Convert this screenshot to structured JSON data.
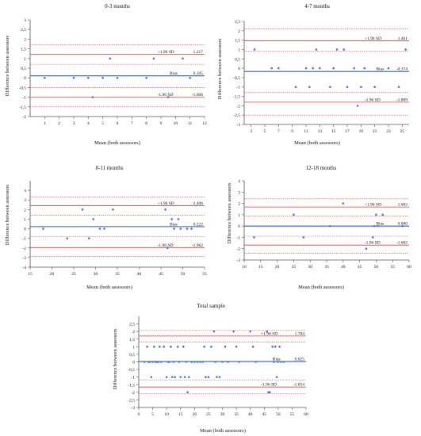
{
  "chart_data": [
    {
      "type": "scatter",
      "title": "0-3 months",
      "xlabel": "Mean (both assessors)",
      "ylabel": "Difference between assessors",
      "xlim": [
        0,
        12
      ],
      "ylim": [
        -2,
        3
      ],
      "xticks": [
        1,
        2,
        3,
        4,
        5,
        6,
        7,
        8,
        9,
        10,
        11,
        12
      ],
      "xtick_labels": [
        "1",
        "2",
        "3",
        "4",
        "5",
        "6",
        "7",
        "8",
        "9",
        "10",
        "11",
        "12"
      ],
      "yticks": [
        -2,
        -1.5,
        -1,
        -0.5,
        0,
        0.5,
        1,
        1.5,
        2,
        2.5,
        3
      ],
      "ytick_labels": [
        "-2",
        "-1,5",
        "-1",
        "-0,5",
        "0",
        "0,5",
        "1",
        "1,5",
        "2",
        "2,5",
        "3"
      ],
      "bias": 0.105,
      "upper_loa": 1.217,
      "lower_loa": -1.006,
      "ref_lines": [
        -1.5,
        -0.5,
        0.7,
        1.7
      ],
      "bias_label": "Bias",
      "bias_value_label": "0.105",
      "upper_label": "+1.96 SD",
      "upper_value_label": "1.217",
      "lower_label": "-1.96 SD",
      "lower_value_label": "-1.006",
      "points": [
        [
          1,
          0
        ],
        [
          3,
          0
        ],
        [
          4,
          0
        ],
        [
          4.3,
          -1
        ],
        [
          5,
          0
        ],
        [
          5.5,
          1
        ],
        [
          6,
          0
        ],
        [
          8,
          0
        ],
        [
          8.5,
          1
        ],
        [
          9.5,
          -1
        ],
        [
          10.5,
          1
        ],
        [
          11,
          0
        ]
      ]
    },
    {
      "type": "scatter",
      "title": "4-7 months",
      "xlabel": "Mean (both assessors)",
      "ylabel": "Difference between assessors",
      "xlim": [
        2,
        26
      ],
      "ylim": [
        -3,
        2.5
      ],
      "xticks": [
        3,
        5,
        7,
        9,
        11,
        13,
        15,
        17,
        19,
        21,
        23,
        25
      ],
      "xtick_labels": [
        "3",
        "5",
        "7",
        "9",
        "11",
        "13",
        "15",
        "17",
        "19",
        "21",
        "23",
        "25"
      ],
      "yticks": [
        -3,
        -2.5,
        -2,
        -1.5,
        -1,
        -0.5,
        0,
        0.5,
        1,
        1.5,
        2,
        2.5
      ],
      "ytick_labels": [
        "-3",
        "-2,5",
        "-2",
        "-1,5",
        "-1",
        "-0,5",
        "0",
        "0,5",
        "1",
        "1,5",
        "2",
        "2,5"
      ],
      "bias": -0.174,
      "upper_loa": 1.461,
      "lower_loa": -1.809,
      "ref_lines": [
        -2.5,
        -1.3,
        0.9,
        2.1
      ],
      "bias_label": "Bias",
      "bias_value_label": "-0.174",
      "upper_label": "+1.96 SD",
      "upper_value_label": "1.461",
      "lower_label": "-1.96 SD",
      "lower_value_label": "-1.809",
      "points": [
        [
          3.5,
          1
        ],
        [
          6,
          0
        ],
        [
          7,
          0
        ],
        [
          9.5,
          -1
        ],
        [
          11,
          0
        ],
        [
          11.5,
          -1
        ],
        [
          12,
          0
        ],
        [
          12.5,
          1
        ],
        [
          13,
          0
        ],
        [
          14.5,
          -1
        ],
        [
          15,
          0
        ],
        [
          15.5,
          1
        ],
        [
          16.5,
          1
        ],
        [
          17,
          -1
        ],
        [
          18,
          0
        ],
        [
          18.5,
          -2
        ],
        [
          19,
          -1
        ],
        [
          19.5,
          0
        ],
        [
          21,
          -1
        ],
        [
          23,
          0
        ],
        [
          24.5,
          -1
        ],
        [
          25.5,
          1
        ]
      ]
    },
    {
      "type": "scatter",
      "title": "8-11 months",
      "xlabel": "Mean (both assessors)",
      "ylabel": "Difference between assessors",
      "xlim": [
        15,
        55
      ],
      "ylim": [
        -4,
        5
      ],
      "xticks": [
        15,
        20,
        25,
        30,
        35,
        40,
        45,
        50,
        55
      ],
      "xtick_labels": [
        "15",
        "20",
        "25",
        "30",
        "35",
        "40",
        "45",
        "50",
        "55"
      ],
      "yticks": [
        -4,
        -3,
        -2,
        -1,
        0,
        1,
        2,
        3,
        4
      ],
      "ytick_labels": [
        "-4",
        "-3",
        "-2",
        "-1",
        "0",
        "1",
        "2",
        "3",
        "4"
      ],
      "bias": 0.222,
      "upper_loa": 2.406,
      "lower_loa": -1.962,
      "ref_lines": [
        -2.9,
        -0.8,
        1.4,
        3.3
      ],
      "bias_label": "Bias",
      "bias_value_label": "0.222",
      "upper_label": "+1.96 SD",
      "upper_value_label": "2.406",
      "lower_label": "-1.96 SD",
      "lower_value_label": "-1.962",
      "points": [
        [
          18,
          0
        ],
        [
          23.5,
          -1
        ],
        [
          27,
          2
        ],
        [
          28.5,
          -1
        ],
        [
          29.5,
          1
        ],
        [
          31,
          0
        ],
        [
          32,
          0
        ],
        [
          34,
          2
        ],
        [
          46,
          2
        ],
        [
          46.5,
          -2
        ],
        [
          47.5,
          1
        ],
        [
          48,
          0
        ],
        [
          49,
          1
        ],
        [
          49.5,
          0
        ],
        [
          51,
          0
        ],
        [
          52,
          0
        ]
      ]
    },
    {
      "type": "scatter",
      "title": "12-18 months",
      "xlabel": "Mean (both assessors)",
      "ylabel": "Difference between assessors",
      "xlim": [
        10,
        60
      ],
      "ylim": [
        -3,
        4
      ],
      "xticks": [
        10,
        15,
        20,
        25,
        30,
        35,
        40,
        45,
        50,
        55,
        60
      ],
      "xtick_labels": [
        "10",
        "15",
        "20",
        "25",
        "30",
        "35",
        "40",
        "45",
        "50",
        "55",
        "60"
      ],
      "yticks": [
        -3,
        -2,
        -1,
        0,
        1,
        2,
        3,
        4
      ],
      "ytick_labels": [
        "-3",
        "-2",
        "-1",
        "0",
        "1",
        "2",
        "3",
        "4"
      ],
      "bias": 0.0,
      "upper_loa": 1.682,
      "lower_loa": -1.682,
      "ref_lines": [
        -2.4,
        -0.9,
        0.9,
        2.4
      ],
      "bias_label": "Bias",
      "bias_value_label": "0.000",
      "upper_label": "+1.96 SD",
      "upper_value_label": "1.682",
      "lower_label": "-1.96 SD",
      "lower_value_label": "-1.682",
      "points": [
        [
          13,
          -1
        ],
        [
          25,
          1
        ],
        [
          28,
          -1
        ],
        [
          36,
          0
        ],
        [
          40,
          2
        ],
        [
          47,
          -2
        ],
        [
          49,
          -1
        ],
        [
          49.5,
          0
        ],
        [
          50,
          1
        ],
        [
          50.5,
          0
        ],
        [
          52,
          1
        ],
        [
          58,
          0
        ]
      ]
    },
    {
      "type": "scatter",
      "title": "Total sample",
      "xlabel": "Mean (both assessors)",
      "ylabel": "Difference between assessors",
      "xlim": [
        0,
        60
      ],
      "ylim": [
        -3,
        3
      ],
      "xticks": [
        0,
        5,
        10,
        15,
        20,
        25,
        30,
        35,
        40,
        45,
        50,
        55,
        60
      ],
      "xtick_labels": [
        "0",
        "5",
        "10",
        "15",
        "20",
        "25",
        "30",
        "35",
        "40",
        "45",
        "50",
        "55",
        "60"
      ],
      "yticks": [
        -3,
        -2.5,
        -2,
        -1.5,
        -1,
        -0.5,
        0,
        0.5,
        1,
        1.5,
        2,
        2.5
      ],
      "ytick_labels": [
        "-3",
        "-2,5",
        "-2",
        "-1,5",
        "-1",
        "-0,5",
        "0",
        "0,5",
        "1",
        "1,5",
        "2",
        "2,5"
      ],
      "bias": 0.025,
      "upper_loa": 1.704,
      "lower_loa": -1.654,
      "ref_lines": [
        -2.1,
        -1.2,
        1.3,
        2.1
      ],
      "bias_label": "Bias",
      "bias_value_label": "0.025",
      "upper_label": "+1.96 SD",
      "upper_value_label": "1.704",
      "lower_label": "-1.96 SD",
      "lower_value_label": "-1.654",
      "points": [
        [
          2,
          0
        ],
        [
          3,
          1
        ],
        [
          3.5,
          0
        ],
        [
          4,
          0
        ],
        [
          4.5,
          -1
        ],
        [
          5,
          0
        ],
        [
          5.5,
          1
        ],
        [
          6,
          0
        ],
        [
          6.5,
          0
        ],
        [
          7,
          0
        ],
        [
          7.5,
          1
        ],
        [
          8,
          0
        ],
        [
          9,
          1
        ],
        [
          10,
          -1
        ],
        [
          10.5,
          0
        ],
        [
          11,
          0
        ],
        [
          11.5,
          1
        ],
        [
          12,
          -1
        ],
        [
          12.5,
          0
        ],
        [
          13,
          -1
        ],
        [
          14,
          1
        ],
        [
          14.5,
          0
        ],
        [
          15,
          -1
        ],
        [
          16,
          1
        ],
        [
          16.5,
          -1
        ],
        [
          17,
          0
        ],
        [
          17.5,
          -2
        ],
        [
          18,
          -1
        ],
        [
          19,
          0
        ],
        [
          20,
          0
        ],
        [
          21,
          0
        ],
        [
          22,
          0
        ],
        [
          23,
          0
        ],
        [
          23.5,
          1
        ],
        [
          24,
          -1
        ],
        [
          25,
          -1
        ],
        [
          26,
          1
        ],
        [
          27,
          2
        ],
        [
          27.5,
          0
        ],
        [
          28,
          -1
        ],
        [
          29,
          -1
        ],
        [
          30,
          0
        ],
        [
          31,
          1
        ],
        [
          32,
          0
        ],
        [
          34,
          2
        ],
        [
          35,
          1
        ],
        [
          36,
          0
        ],
        [
          40,
          2
        ],
        [
          41,
          1
        ],
        [
          42,
          0
        ],
        [
          46,
          2
        ],
        [
          46.5,
          -2
        ],
        [
          47,
          -2
        ],
        [
          48,
          1
        ],
        [
          48.5,
          0
        ],
        [
          49,
          1
        ],
        [
          49.5,
          -1
        ],
        [
          50,
          0
        ],
        [
          50.5,
          1
        ],
        [
          51,
          0
        ],
        [
          52,
          0
        ]
      ]
    }
  ]
}
